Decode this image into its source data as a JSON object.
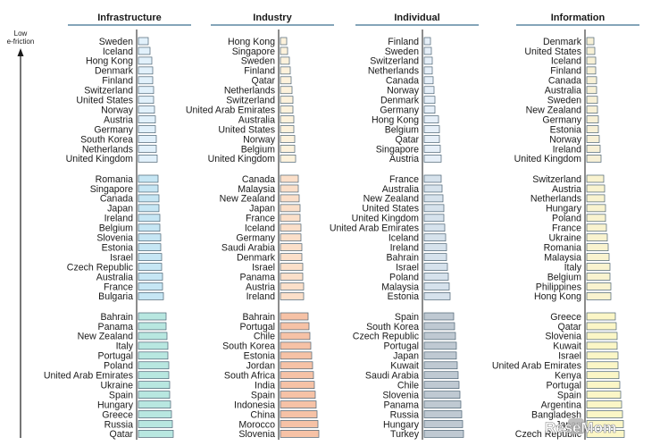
{
  "axis": {
    "label_line1": "Low",
    "label_line2": "e-friction"
  },
  "watermark": "ReseMom",
  "chart_data": [
    {
      "type": "bar",
      "title": "Infrastructure",
      "colors": {
        "tier1": "#e2f1fb",
        "tier2": "#c6e6f4",
        "tier3": "#b8e7e0"
      },
      "groups": [
        {
          "categories": [
            "Sweden",
            "Iceland",
            "Hong Kong",
            "Denmark",
            "Finland",
            "Switzerland",
            "United States",
            "Norway",
            "Austria",
            "Germany",
            "South Korea",
            "Netherlands",
            "United Kingdom"
          ],
          "values": [
            11,
            13,
            15,
            16,
            16,
            17,
            17,
            18,
            19,
            19,
            20,
            20,
            21
          ]
        },
        {
          "categories": [
            "Romania",
            "Singapore",
            "Canada",
            "Japan",
            "Ireland",
            "Belgium",
            "Slovenia",
            "Estonia",
            "Israel",
            "Czech Republic",
            "Australia",
            "France",
            "Bulgaria"
          ],
          "values": [
            22,
            22,
            23,
            23,
            24,
            24,
            25,
            25,
            26,
            26,
            27,
            27,
            28
          ]
        },
        {
          "categories": [
            "Bahrain",
            "Panama",
            "New Zealand",
            "Italy",
            "Portugal",
            "Poland",
            "United Arab Emirates",
            "Ukraine",
            "Spain",
            "Hungary",
            "Greece",
            "Russia",
            "Qatar"
          ],
          "values": [
            31,
            31,
            32,
            33,
            33,
            34,
            34,
            35,
            35,
            36,
            37,
            38,
            39
          ]
        }
      ]
    },
    {
      "type": "bar",
      "title": "Industry",
      "colors": {
        "tier1": "#fdf2dc",
        "tier2": "#fbdfc9",
        "tier3": "#f6c2a6"
      },
      "groups": [
        {
          "categories": [
            "Hong Kong",
            "Singapore",
            "Sweden",
            "Finland",
            "Qatar",
            "Netherlands",
            "Switzerland",
            "United Arab Emirates",
            "Australia",
            "United States",
            "Norway",
            "Belgium",
            "United Kingdom"
          ],
          "values": [
            7,
            8,
            10,
            11,
            12,
            13,
            14,
            14,
            15,
            15,
            16,
            16,
            17
          ]
        },
        {
          "categories": [
            "Canada",
            "Malaysia",
            "New Zealand",
            "Japan",
            "France",
            "Iceland",
            "Germany",
            "Saudi Arabia",
            "Denmark",
            "Israel",
            "Panama",
            "Austria",
            "Ireland"
          ],
          "values": [
            20,
            20,
            21,
            22,
            22,
            23,
            23,
            24,
            24,
            25,
            25,
            26,
            26
          ]
        },
        {
          "categories": [
            "Bahrain",
            "Portugal",
            "Chile",
            "South Korea",
            "Estonia",
            "Jordan",
            "South Africa",
            "India",
            "Spain",
            "Indonesia",
            "China",
            "Morocco",
            "Slovenia"
          ],
          "values": [
            31,
            32,
            33,
            34,
            35,
            36,
            37,
            38,
            39,
            40,
            41,
            42,
            43
          ]
        }
      ]
    },
    {
      "type": "bar",
      "title": "Individual",
      "colors": {
        "tier1": "#e6eff8",
        "tier2": "#d6e2ec",
        "tier3": "#bfc9d2"
      },
      "groups": [
        {
          "categories": [
            "Finland",
            "Sweden",
            "Switzerland",
            "Netherlands",
            "Canada",
            "Norway",
            "Denmark",
            "Germany",
            "Hong Kong",
            "Belgium",
            "Qatar",
            "Singapore",
            "Austria"
          ],
          "values": [
            7,
            8,
            9,
            9,
            10,
            11,
            12,
            12,
            16,
            17,
            17,
            18,
            19
          ]
        },
        {
          "categories": [
            "France",
            "Australia",
            "New Zealand",
            "United States",
            "United Kingdom",
            "United Arab Emirates",
            "Iceland",
            "Ireland",
            "Bahrain",
            "Israel",
            "Poland",
            "Malaysia",
            "Estonia"
          ],
          "values": [
            19,
            20,
            21,
            22,
            22,
            23,
            24,
            25,
            25,
            26,
            27,
            28,
            29
          ]
        },
        {
          "categories": [
            "Spain",
            "South Korea",
            "Czech Republic",
            "Portugal",
            "Japan",
            "Kuwait",
            "Saudi Arabia",
            "Chile",
            "Slovenia",
            "Panama",
            "Russia",
            "Hungary",
            "Turkey"
          ],
          "values": [
            33,
            34,
            35,
            36,
            36,
            37,
            38,
            39,
            40,
            41,
            42,
            43,
            44
          ]
        }
      ]
    },
    {
      "type": "bar",
      "title": "Information",
      "colors": {
        "tier1": "#f7f0d6",
        "tier2": "#f9f3cf",
        "tier3": "#fbf6c6"
      },
      "groups": [
        {
          "categories": [
            "Denmark",
            "United States",
            "Iceland",
            "Finland",
            "Canada",
            "Australia",
            "Sweden",
            "New Zealand",
            "Germany",
            "Estonia",
            "Norway",
            "Ireland",
            "United Kingdom"
          ],
          "values": [
            8,
            9,
            10,
            10,
            11,
            11,
            12,
            12,
            13,
            13,
            14,
            15,
            16
          ]
        },
        {
          "categories": [
            "Switzerland",
            "Austria",
            "Netherlands",
            "Hungary",
            "Poland",
            "France",
            "Ukraine",
            "Romania",
            "Malaysia",
            "Italy",
            "Belgium",
            "Philippines",
            "Hong Kong"
          ],
          "values": [
            19,
            20,
            20,
            21,
            21,
            22,
            23,
            24,
            25,
            26,
            26,
            27,
            27
          ]
        },
        {
          "categories": [
            "Greece",
            "Qatar",
            "Slovenia",
            "Kuwait",
            "Israel",
            "United Arab Emirates",
            "Kenya",
            "Portugal",
            "Spain",
            "Argentina",
            "Bangladesh",
            "Japan",
            "Czech Republic"
          ],
          "values": [
            32,
            33,
            34,
            34,
            35,
            35,
            36,
            37,
            38,
            39,
            40,
            41,
            42
          ]
        }
      ]
    }
  ]
}
